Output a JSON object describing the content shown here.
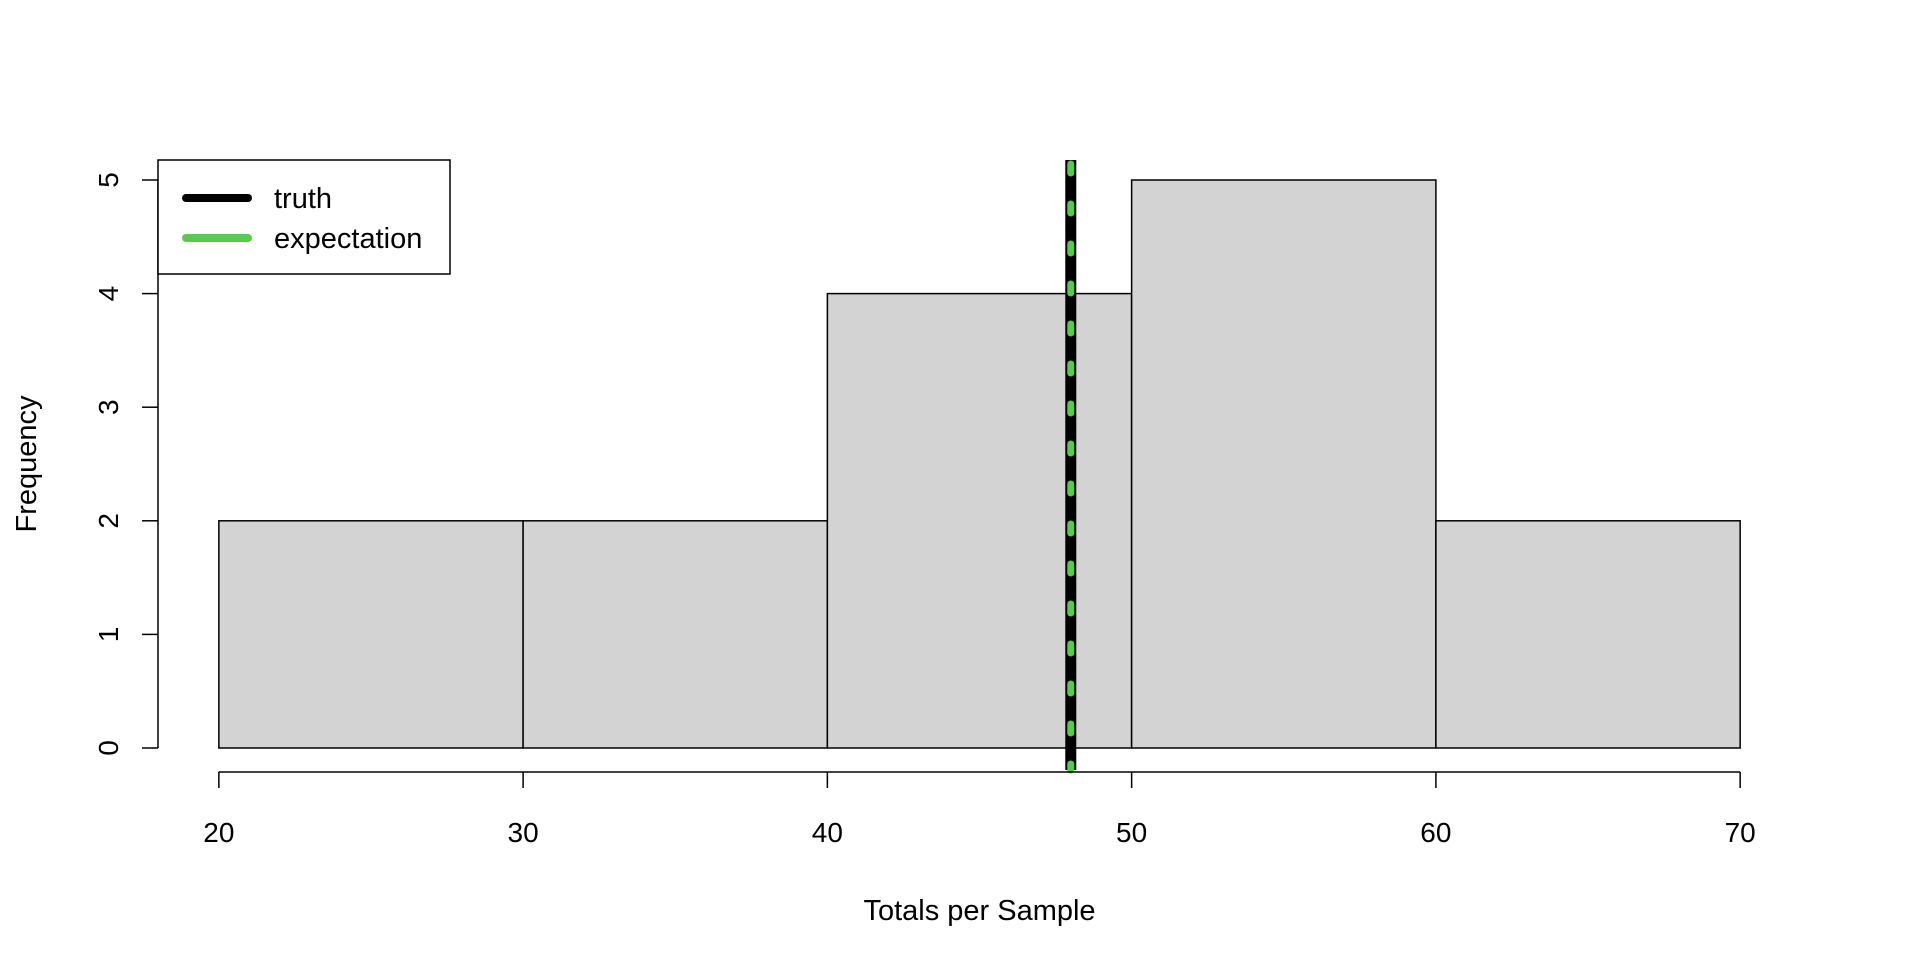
{
  "chart_data": {
    "type": "histogram",
    "title": "",
    "xlabel": "Totals per Sample",
    "ylabel": "Frequency",
    "bins": [
      {
        "from": 20,
        "to": 30,
        "count": 2
      },
      {
        "from": 30,
        "to": 40,
        "count": 2
      },
      {
        "from": 40,
        "to": 50,
        "count": 4
      },
      {
        "from": 50,
        "to": 60,
        "count": 5
      },
      {
        "from": 60,
        "to": 70,
        "count": 2
      }
    ],
    "x_ticks": [
      20,
      30,
      40,
      50,
      60,
      70
    ],
    "x_tick_labels": [
      "20",
      "30",
      "40",
      "50",
      "60",
      "70"
    ],
    "y_ticks": [
      0,
      1,
      2,
      3,
      4,
      5
    ],
    "y_tick_labels": [
      "0",
      "1",
      "2",
      "3",
      "4",
      "5"
    ],
    "xlim": [
      18,
      72
    ],
    "ylim": [
      0,
      5
    ],
    "grid": false,
    "bar_fill": "#d3d3d3",
    "bar_stroke": "#000000",
    "reference_lines": [
      {
        "label": "truth",
        "x": 48,
        "color": "#000000",
        "style": "solid"
      },
      {
        "label": "expectation",
        "x": 48,
        "color": "#5bc94e",
        "style": "dotted"
      }
    ],
    "legend": {
      "position": "top-left",
      "entries": [
        {
          "label": "truth",
          "color": "#000000"
        },
        {
          "label": "expectation",
          "color": "#5bc94e"
        }
      ]
    }
  }
}
